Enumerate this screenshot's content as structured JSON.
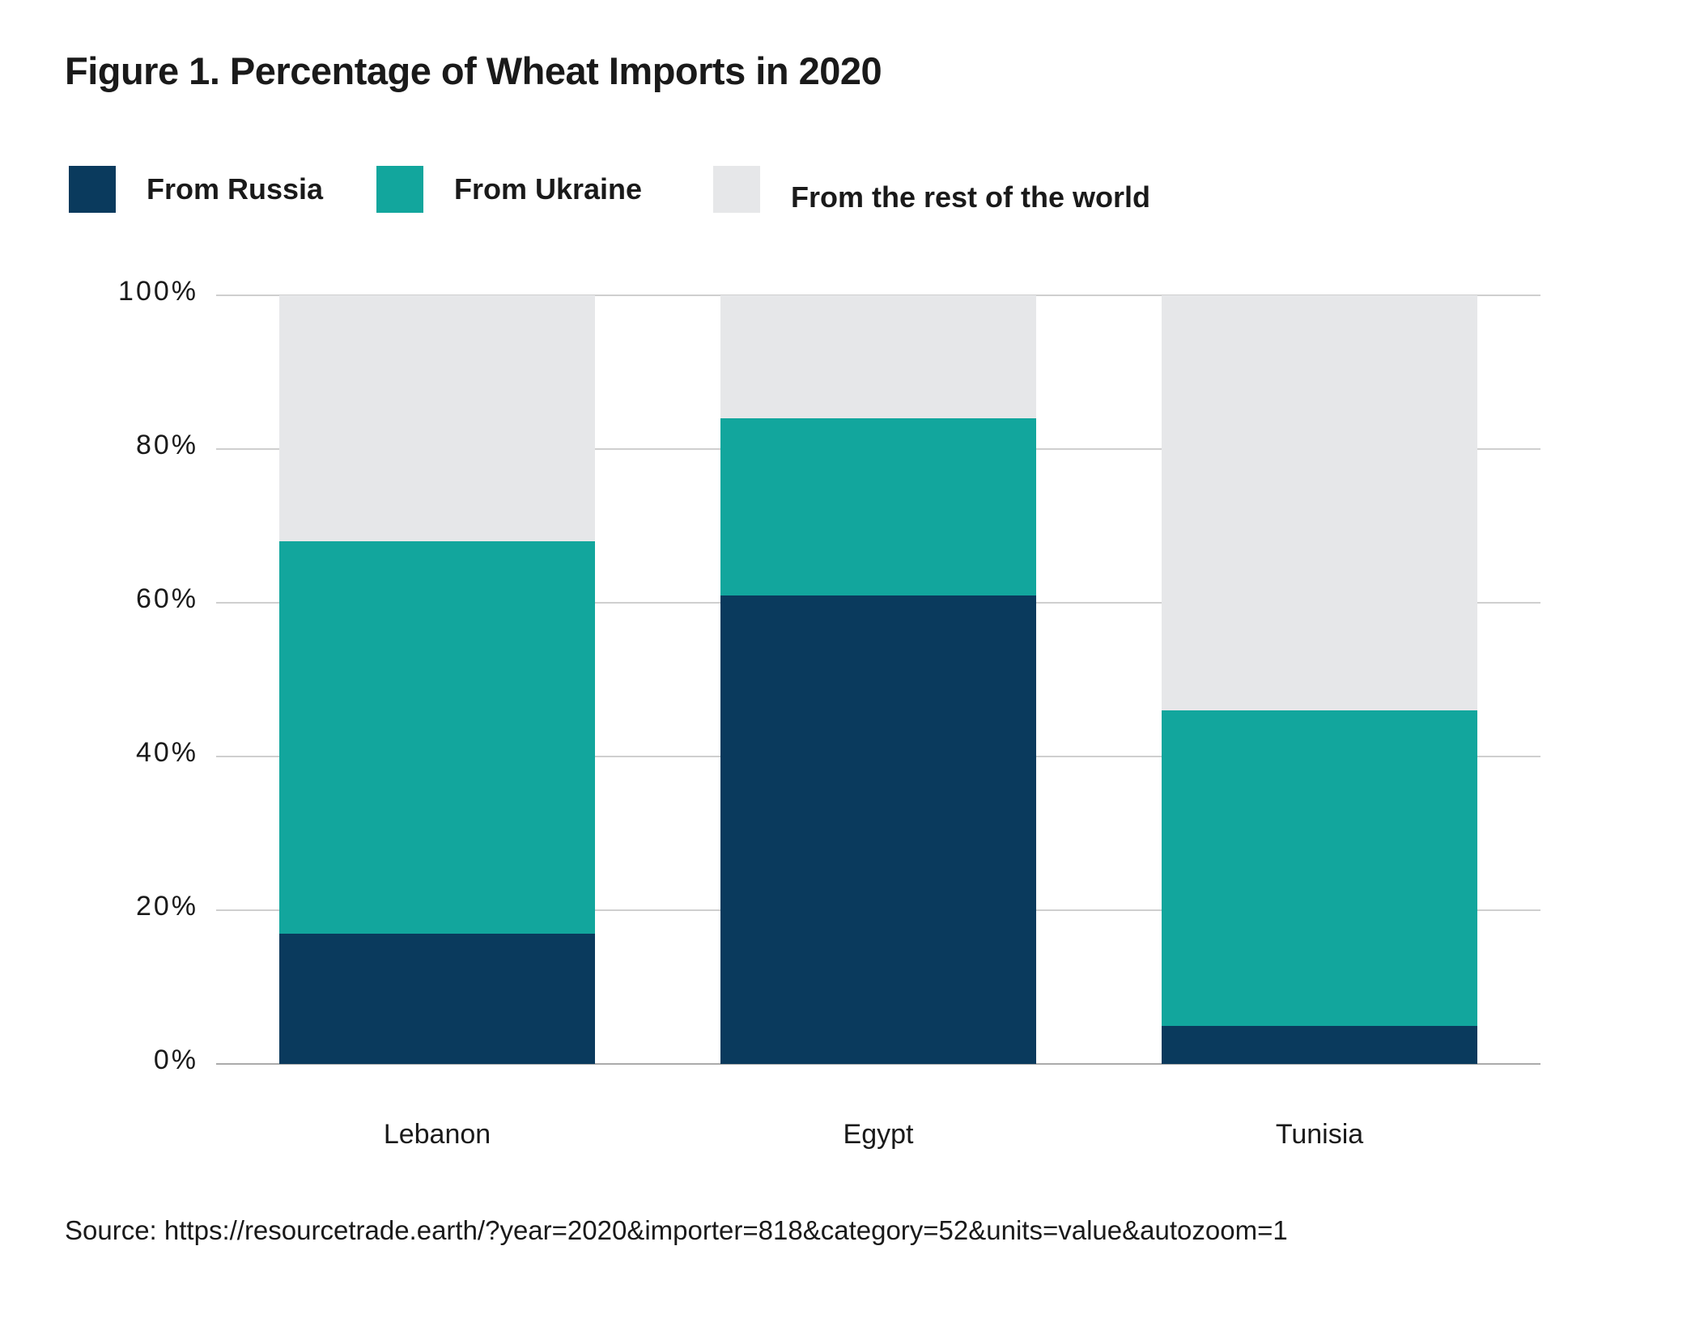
{
  "title": "Figure 1. Percentage of Wheat Imports in 2020",
  "legend": {
    "items": [
      {
        "label": "From Russia",
        "color": "#0A3A5D"
      },
      {
        "label": "From Ukraine",
        "color": "#12A69D"
      },
      {
        "label": "From the rest of the world",
        "color": "#E6E7E9"
      }
    ]
  },
  "chart_data": {
    "type": "bar",
    "stacked": true,
    "title": "Figure 1. Percentage of Wheat Imports in 2020",
    "categories": [
      "Lebanon",
      "Egypt",
      "Tunisia"
    ],
    "series": [
      {
        "name": "From Russia",
        "color": "#0A3A5D",
        "values": [
          17,
          61,
          5
        ]
      },
      {
        "name": "From Ukraine",
        "color": "#12A69D",
        "values": [
          51,
          23,
          41
        ]
      },
      {
        "name": "From the rest of the world",
        "color": "#E6E7E9",
        "values": [
          32,
          16,
          54
        ]
      }
    ],
    "xlabel": "",
    "ylabel": "",
    "ylim": [
      0,
      100
    ],
    "yticks": [
      {
        "value": 0,
        "label": "0%"
      },
      {
        "value": 20,
        "label": "20%"
      },
      {
        "value": 40,
        "label": "40%"
      },
      {
        "value": 60,
        "label": "60%"
      },
      {
        "value": 80,
        "label": "80%"
      },
      {
        "value": 100,
        "label": "100%"
      }
    ],
    "grid": true,
    "legend_position": "top"
  },
  "source": "Source: https://resourcetrade.earth/?year=2020&importer=818&category=52&units=value&autozoom=1",
  "colors": {
    "grid": "#CFCFCF",
    "axis": "#ABABAB",
    "text": "#1A1A1A",
    "background": "#FFFFFF"
  }
}
